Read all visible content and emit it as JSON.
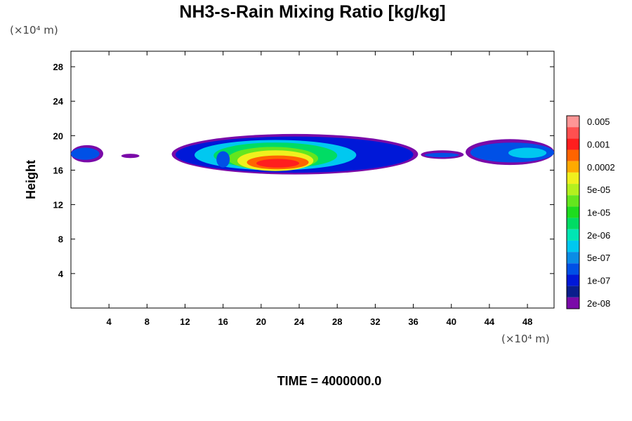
{
  "chart_data": {
    "type": "heatmap",
    "title": "NH3-s-Rain Mixing Ratio [kg/kg]",
    "xlabel": "",
    "ylabel": "Height",
    "x_unit_label": "(×10⁴ m)",
    "y_unit_label": "(×10⁴ m)",
    "x_ticks": [
      4,
      8,
      12,
      16,
      20,
      24,
      28,
      32,
      36,
      40,
      44,
      48
    ],
    "y_ticks": [
      4,
      8,
      12,
      16,
      20,
      24,
      28
    ],
    "xlim": [
      0,
      50.8
    ],
    "ylim": [
      0,
      29.8
    ],
    "footer": "TIME = 4000000.0",
    "colorbar": {
      "colors": [
        "#7a0aa8",
        "#0a1e8c",
        "#0018d8",
        "#0050e6",
        "#0a8ce6",
        "#00c8f0",
        "#00e6b4",
        "#00dc64",
        "#1edc1e",
        "#64e61e",
        "#b4f01e",
        "#f0f01e",
        "#ffaa00",
        "#ff6400",
        "#ff1e1e",
        "#ff5050",
        "#ff9696"
      ],
      "labels": [
        "2e-08",
        "1e-07",
        "5e-07",
        "2e-06",
        "1e-05",
        "5e-05",
        "0.0002",
        "0.001",
        "0.005"
      ]
    },
    "regions": [
      {
        "level": 0,
        "x": [
          0,
          3.4
        ],
        "y": [
          16.9,
          18.9
        ]
      },
      {
        "level": 3,
        "x": [
          0,
          3.0
        ],
        "y": [
          17.2,
          18.6
        ]
      },
      {
        "level": 0,
        "x": [
          5.3,
          7.2
        ],
        "y": [
          17.4,
          17.9
        ]
      },
      {
        "level": 0,
        "x": [
          10.6,
          36.5
        ],
        "y": [
          15.5,
          20.2
        ]
      },
      {
        "level": 2,
        "x": [
          11.0,
          36.0
        ],
        "y": [
          15.7,
          19.9
        ]
      },
      {
        "level": 5,
        "x": [
          13.0,
          30.0
        ],
        "y": [
          16.0,
          19.5
        ]
      },
      {
        "level": 7,
        "x": [
          15.0,
          28.0
        ],
        "y": [
          16.2,
          19.2
        ]
      },
      {
        "level": 9,
        "x": [
          16.5,
          26.0
        ],
        "y": [
          16.0,
          18.7
        ]
      },
      {
        "level": 11,
        "x": [
          17.5,
          25.5
        ],
        "y": [
          15.9,
          18.3
        ]
      },
      {
        "level": 13,
        "x": [
          18.5,
          25.0
        ],
        "y": [
          16.1,
          17.7
        ]
      },
      {
        "level": 14,
        "x": [
          19.5,
          24.0
        ],
        "y": [
          16.3,
          17.3
        ]
      },
      {
        "level": 3,
        "x": [
          15.3,
          16.7
        ],
        "y": [
          16.3,
          18.2
        ]
      },
      {
        "level": 0,
        "x": [
          36.8,
          41.3
        ],
        "y": [
          17.3,
          18.3
        ]
      },
      {
        "level": 3,
        "x": [
          37.2,
          40.8
        ],
        "y": [
          17.5,
          18.0
        ]
      },
      {
        "level": 0,
        "x": [
          41.5,
          50.8
        ],
        "y": [
          16.6,
          19.6
        ]
      },
      {
        "level": 3,
        "x": [
          42.0,
          50.8
        ],
        "y": [
          16.9,
          19.2
        ]
      },
      {
        "level": 5,
        "x": [
          46.0,
          50.0
        ],
        "y": [
          17.4,
          18.6
        ]
      }
    ]
  }
}
